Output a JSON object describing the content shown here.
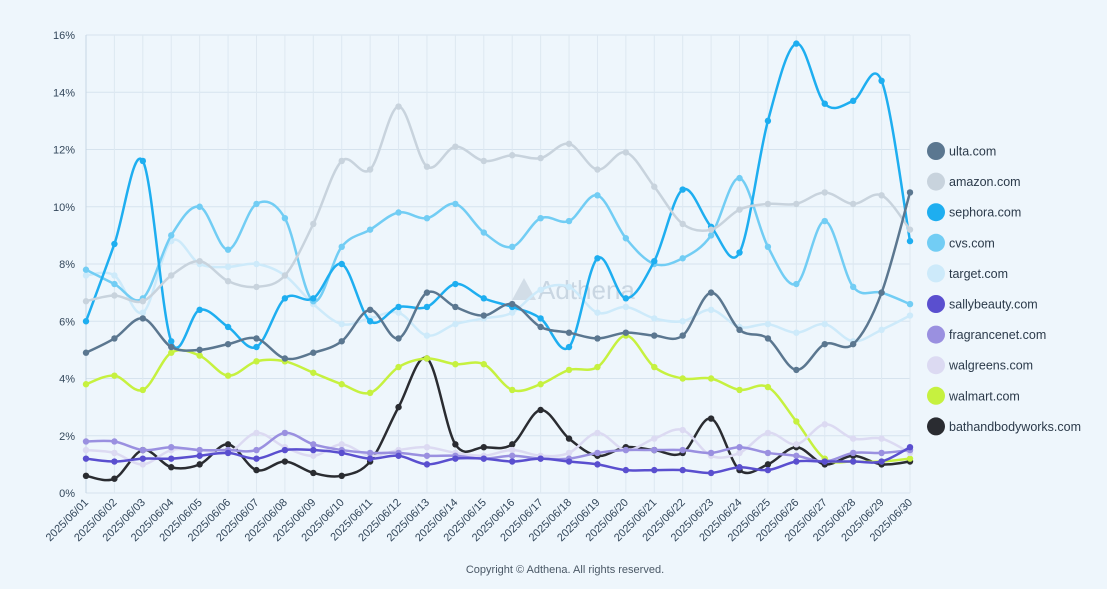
{
  "watermark": "Adthena",
  "footer": "Copyright © Adthena. All rights reserved.",
  "chart_data": {
    "type": "line",
    "title": "",
    "xlabel": "",
    "ylabel": "",
    "ylim": [
      0,
      16
    ],
    "y_ticks": [
      "0%",
      "2%",
      "4%",
      "6%",
      "8%",
      "10%",
      "12%",
      "14%",
      "16%"
    ],
    "y_tick_values": [
      0,
      2,
      4,
      6,
      8,
      10,
      12,
      14,
      16
    ],
    "legend_position": "right",
    "x": [
      "2025/06/01",
      "2025/06/02",
      "2025/06/03",
      "2025/06/04",
      "2025/06/05",
      "2025/06/06",
      "2025/06/07",
      "2025/06/08",
      "2025/06/09",
      "2025/06/10",
      "2025/06/11",
      "2025/06/12",
      "2025/06/13",
      "2025/06/14",
      "2025/06/15",
      "2025/06/16",
      "2025/06/17",
      "2025/06/18",
      "2025/06/19",
      "2025/06/20",
      "2025/06/21",
      "2025/06/22",
      "2025/06/23",
      "2025/06/24",
      "2025/06/25",
      "2025/06/26",
      "2025/06/27",
      "2025/06/28",
      "2025/06/29",
      "2025/06/30"
    ],
    "series": [
      {
        "name": "ulta.com",
        "color": "#5b7790",
        "values": [
          4.9,
          5.4,
          6.1,
          5.1,
          5.0,
          5.2,
          5.4,
          4.7,
          4.9,
          5.3,
          6.4,
          5.4,
          7.0,
          6.5,
          6.2,
          6.6,
          5.8,
          5.6,
          5.4,
          5.6,
          5.5,
          5.5,
          7.0,
          5.7,
          5.4,
          4.3,
          5.2,
          5.2,
          7.0,
          10.5
        ]
      },
      {
        "name": "amazon.com",
        "color": "#c8d3dd",
        "values": [
          6.7,
          6.9,
          6.7,
          7.6,
          8.1,
          7.4,
          7.2,
          7.6,
          9.4,
          11.6,
          11.3,
          13.5,
          11.4,
          12.1,
          11.6,
          11.8,
          11.7,
          12.2,
          11.3,
          11.9,
          10.7,
          9.4,
          9.2,
          9.9,
          10.1,
          10.1,
          10.5,
          10.1,
          10.4,
          9.2
        ]
      },
      {
        "name": "sephora.com",
        "color": "#1eaef0",
        "values": [
          6.0,
          8.7,
          11.6,
          5.3,
          6.4,
          5.8,
          5.1,
          6.8,
          6.8,
          8.0,
          6.0,
          6.5,
          6.5,
          7.3,
          6.8,
          6.5,
          6.1,
          5.1,
          8.2,
          6.8,
          8.1,
          10.6,
          9.3,
          8.4,
          13.0,
          15.7,
          13.6,
          13.7,
          14.4,
          8.8
        ]
      },
      {
        "name": "cvs.com",
        "color": "#72cdf4",
        "values": [
          7.8,
          7.3,
          6.8,
          9.0,
          10.0,
          8.5,
          10.1,
          9.6,
          6.7,
          8.6,
          9.2,
          9.8,
          9.6,
          10.1,
          9.1,
          8.6,
          9.6,
          9.5,
          10.4,
          8.9,
          8.0,
          8.2,
          9.0,
          11.0,
          8.6,
          7.3,
          9.5,
          7.2,
          7.0,
          6.6
        ]
      },
      {
        "name": "target.com",
        "color": "#cdeafa",
        "values": [
          7.6,
          7.6,
          6.3,
          8.8,
          8.0,
          7.9,
          8.0,
          7.6,
          6.6,
          5.9,
          6.1,
          6.3,
          5.5,
          5.9,
          6.1,
          6.3,
          7.1,
          7.2,
          6.3,
          6.5,
          6.1,
          6.0,
          6.4,
          5.8,
          5.9,
          5.6,
          5.9,
          5.3,
          5.7,
          6.2
        ]
      },
      {
        "name": "sallybeauty.com",
        "color": "#5a4fcf",
        "values": [
          1.2,
          1.1,
          1.2,
          1.2,
          1.3,
          1.4,
          1.2,
          1.5,
          1.5,
          1.4,
          1.2,
          1.3,
          1.0,
          1.2,
          1.2,
          1.1,
          1.2,
          1.1,
          1.0,
          0.8,
          0.8,
          0.8,
          0.7,
          0.9,
          0.8,
          1.1,
          1.1,
          1.1,
          1.1,
          1.6
        ]
      },
      {
        "name": "fragrancenet.com",
        "color": "#9a90e0",
        "values": [
          1.8,
          1.8,
          1.5,
          1.6,
          1.5,
          1.5,
          1.5,
          2.1,
          1.7,
          1.5,
          1.4,
          1.4,
          1.3,
          1.3,
          1.2,
          1.3,
          1.2,
          1.2,
          1.4,
          1.5,
          1.5,
          1.5,
          1.4,
          1.6,
          1.4,
          1.3,
          1.1,
          1.4,
          1.4,
          1.5
        ]
      },
      {
        "name": "walgreens.com",
        "color": "#dcdaf2",
        "values": [
          1.5,
          1.4,
          1.0,
          1.5,
          1.5,
          1.4,
          2.1,
          1.6,
          1.3,
          1.7,
          1.3,
          1.5,
          1.6,
          1.4,
          1.3,
          1.5,
          1.3,
          1.4,
          2.1,
          1.5,
          1.9,
          2.2,
          1.3,
          1.4,
          2.1,
          1.7,
          2.4,
          1.9,
          1.9,
          1.4
        ]
      },
      {
        "name": "walmart.com",
        "color": "#c6f13f",
        "values": [
          3.8,
          4.1,
          3.6,
          4.9,
          4.8,
          4.1,
          4.6,
          4.6,
          4.2,
          3.8,
          3.5,
          4.4,
          4.7,
          4.5,
          4.5,
          3.6,
          3.8,
          4.3,
          4.4,
          5.5,
          4.4,
          4.0,
          4.0,
          3.6,
          3.7,
          2.5,
          1.2,
          1.1,
          1.1,
          1.2
        ]
      },
      {
        "name": "bathandbodyworks.com",
        "color": "#2a2c31",
        "values": [
          0.6,
          0.5,
          1.5,
          0.9,
          1.0,
          1.7,
          0.8,
          1.1,
          0.7,
          0.6,
          1.1,
          3.0,
          4.7,
          1.7,
          1.6,
          1.7,
          2.9,
          1.9,
          1.3,
          1.6,
          1.5,
          1.4,
          2.6,
          0.8,
          1.0,
          1.6,
          1.0,
          1.3,
          1.0,
          1.1
        ]
      }
    ]
  }
}
